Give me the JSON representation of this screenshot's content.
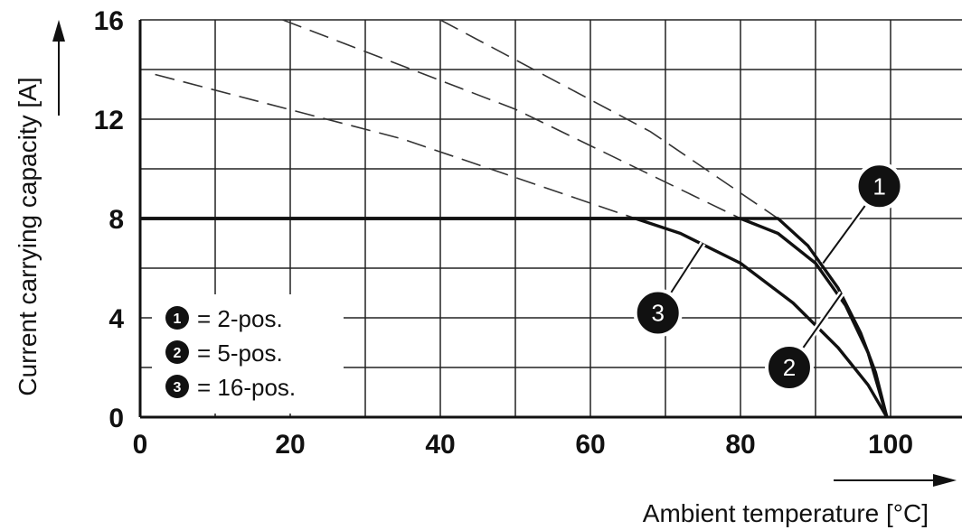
{
  "chart_data": {
    "type": "line",
    "xlabel": "Ambient temperature [°C]",
    "ylabel": "Current carrying capacity [A]",
    "xlim": [
      0,
      100
    ],
    "ylim": [
      0,
      16
    ],
    "x_ticks": [
      0,
      20,
      40,
      60,
      80,
      100
    ],
    "y_ticks": [
      0,
      4,
      8,
      12,
      16
    ],
    "x_grid_step": 10,
    "y_grid_step": 2,
    "grid": true,
    "legend": {
      "placement": "bottom-left",
      "entries": [
        {
          "id": "1",
          "text": "= 2-pos."
        },
        {
          "id": "2",
          "text": "= 5-pos."
        },
        {
          "id": "3",
          "text": "= 16-pos."
        }
      ]
    },
    "series": [
      {
        "id": "1",
        "style": "solid",
        "points": [
          [
            0,
            8
          ],
          [
            85,
            8
          ],
          [
            89,
            6.9
          ],
          [
            93,
            5.2
          ],
          [
            96,
            3.4
          ],
          [
            98,
            1.8
          ],
          [
            99.5,
            0
          ]
        ]
      },
      {
        "id": "2",
        "style": "solid",
        "points": [
          [
            0,
            8
          ],
          [
            80,
            8
          ],
          [
            85,
            7.4
          ],
          [
            90,
            6.2
          ],
          [
            94,
            4.5
          ],
          [
            97,
            2.6
          ],
          [
            99.5,
            0
          ]
        ]
      },
      {
        "id": "3",
        "style": "solid",
        "points": [
          [
            0,
            8
          ],
          [
            66,
            8
          ],
          [
            72,
            7.4
          ],
          [
            80,
            6.2
          ],
          [
            87,
            4.6
          ],
          [
            93,
            2.8
          ],
          [
            97,
            1.3
          ],
          [
            99.5,
            0
          ]
        ]
      },
      {
        "id": "1-extension",
        "style": "dashed",
        "points": [
          [
            40,
            16
          ],
          [
            68,
            11.5
          ],
          [
            85,
            8
          ]
        ]
      },
      {
        "id": "2-extension",
        "style": "dashed",
        "points": [
          [
            19,
            16
          ],
          [
            50,
            12.4
          ],
          [
            80,
            8
          ]
        ]
      },
      {
        "id": "3-extension",
        "style": "dashed",
        "points": [
          [
            2,
            13.8
          ],
          [
            35,
            11.2
          ],
          [
            66,
            8
          ]
        ]
      }
    ],
    "annotations": [
      {
        "label": "1",
        "badge_at": [
          98.5,
          9.3
        ],
        "leader_to": [
          91,
          6.2
        ]
      },
      {
        "label": "2",
        "badge_at": [
          86.5,
          2.0
        ],
        "leader_to": [
          93.5,
          5.0
        ]
      },
      {
        "label": "3",
        "badge_at": [
          69,
          4.2
        ],
        "leader_to": [
          75,
          7.0
        ]
      }
    ]
  }
}
